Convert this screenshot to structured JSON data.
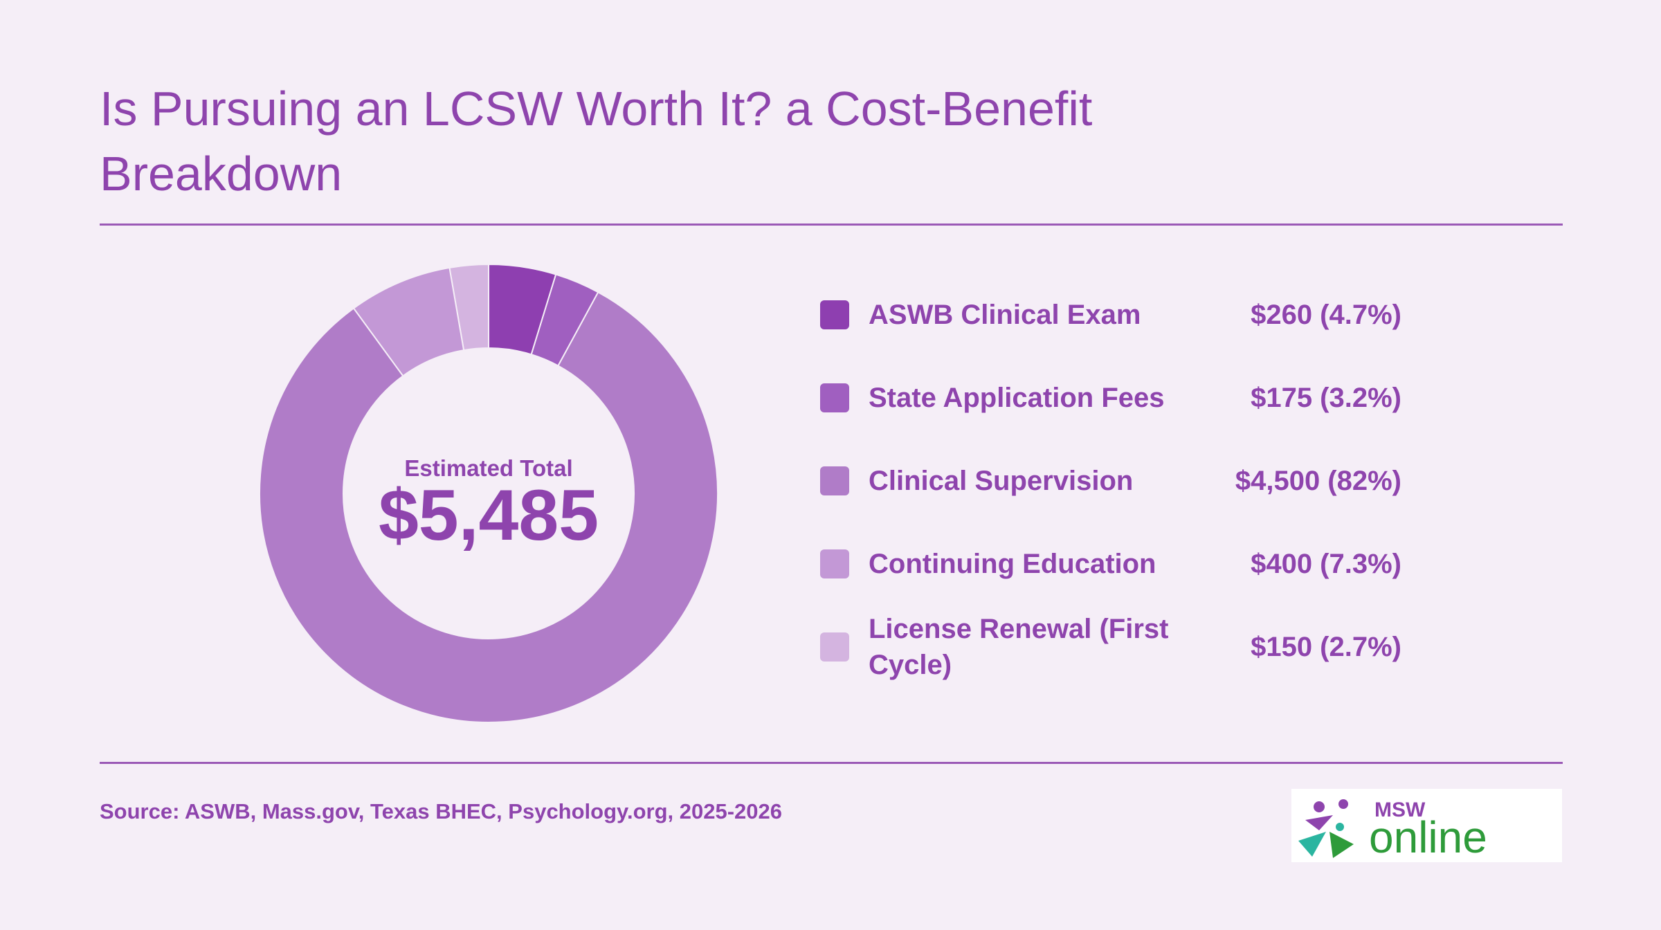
{
  "chart_data": {
    "type": "donut",
    "title": "Is Pursuing an LCSW Worth It? a Cost-Benefit Breakdown",
    "center_title": "Estimated Total",
    "center_value": "$5,485",
    "categories": [
      "ASWB Clinical Exam",
      "State Application Fees",
      "Clinical Supervision",
      "Continuing Education",
      "License Renewal (First Cycle)"
    ],
    "values": [
      260,
      175,
      4500,
      400,
      150
    ],
    "value_labels": [
      "$260 (4.7%)",
      "$175 (3.2%)",
      "$4,500 (82%)",
      "$400 (7.3%)",
      "$150 (2.7%)"
    ],
    "colors": [
      "#8e3fb0",
      "#a05fc0",
      "#b07cc8",
      "#c398d6",
      "#d4b4e0"
    ]
  },
  "footer": {
    "source": "Source: ASWB, Mass.gov, Texas BHEC, Psychology.org, 2025-2026",
    "logo_top": "MSW",
    "logo_bottom": "online"
  }
}
